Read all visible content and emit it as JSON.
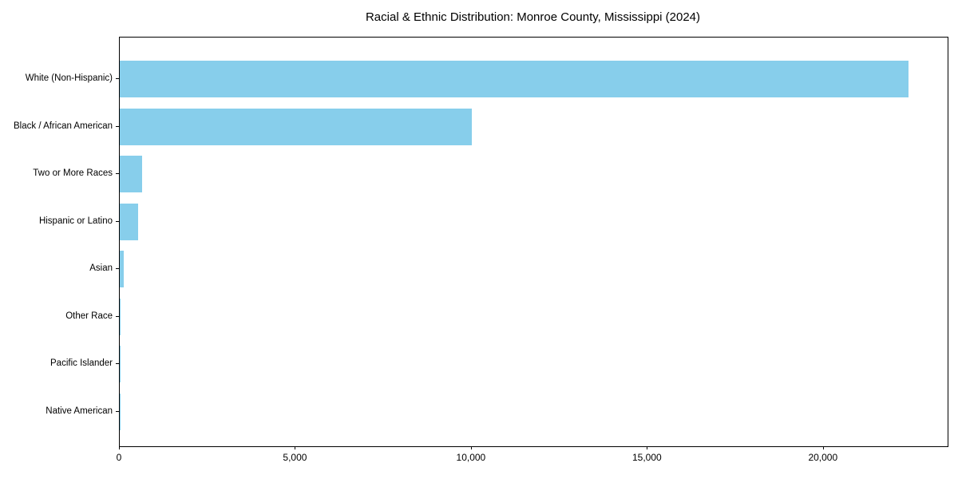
{
  "chart_data": {
    "type": "bar",
    "orientation": "horizontal",
    "title": "Racial & Ethnic Distribution: Monroe County, Mississippi (2024)",
    "xlabel": "",
    "ylabel": "",
    "categories": [
      "White (Non-Hispanic)",
      "Black / African American",
      "Two or More Races",
      "Hispanic or Latino",
      "Asian",
      "Other Race",
      "Pacific Islander",
      "Native American"
    ],
    "values": [
      22400,
      10000,
      630,
      520,
      110,
      28,
      9,
      4
    ],
    "xlim": [
      0,
      23520
    ],
    "x_ticks": [
      0,
      5000,
      10000,
      15000,
      20000
    ],
    "x_tick_labels": [
      "0",
      "5,000",
      "10,000",
      "15,000",
      "20,000"
    ],
    "bar_color": "#87CEEB",
    "axis_color": "#000000",
    "grid": false,
    "legend": "none"
  }
}
